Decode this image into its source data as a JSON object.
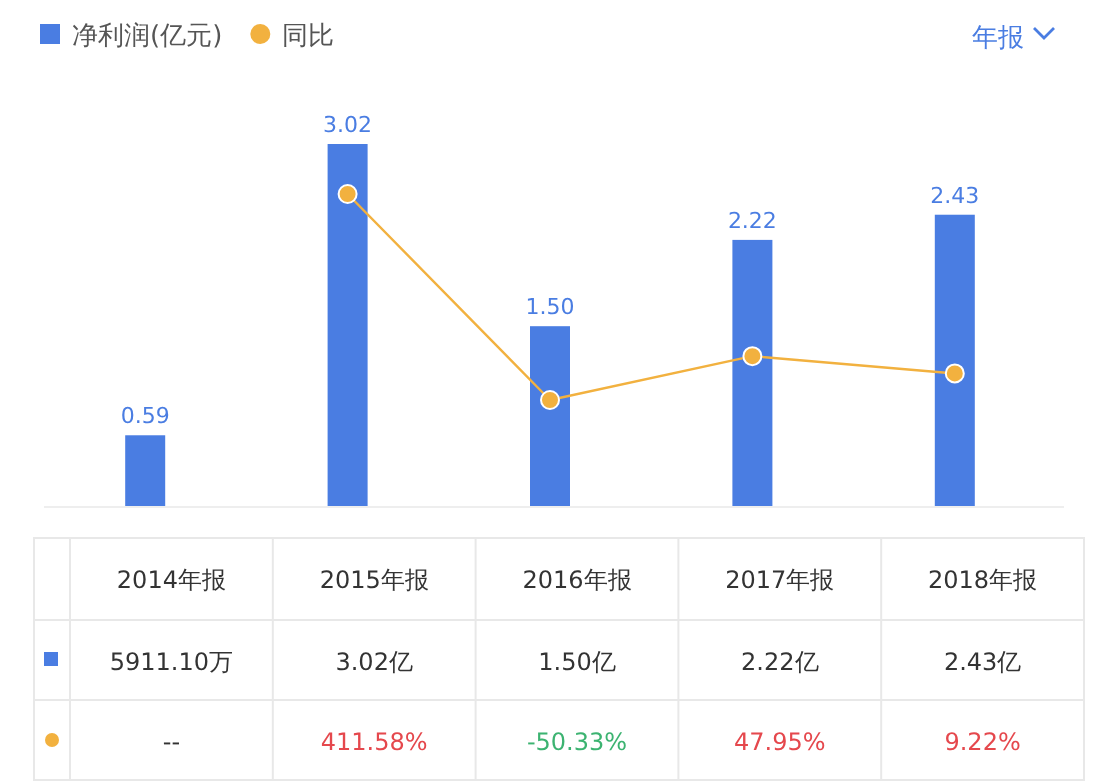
{
  "chart_data": {
    "type": "bar",
    "categories": [
      "2014年报",
      "2015年报",
      "2016年报",
      "2017年报",
      "2018年报"
    ],
    "series": [
      {
        "name": "净利润(亿元)",
        "color": "#4a7de2",
        "values": [
          0.59,
          3.02,
          1.5,
          2.22,
          2.43
        ],
        "value_labels": [
          "0.59",
          "3.02",
          "1.50",
          "2.22",
          "2.43"
        ]
      },
      {
        "name": "同比",
        "type": "line",
        "axis": "y2",
        "color": "#f2b13f",
        "marker": "circle",
        "values": [
          null,
          411.58,
          -50.33,
          47.95,
          9.22
        ],
        "value_labels": [
          "--",
          "411.58%",
          "-50.33%",
          "47.95%",
          "9.22%"
        ]
      }
    ],
    "legend": "top left",
    "annotations": [
      "年报",
      "5911.10万",
      "3.02亿",
      "1.50亿",
      "2.22亿",
      "2.43亿"
    ]
  }
}
